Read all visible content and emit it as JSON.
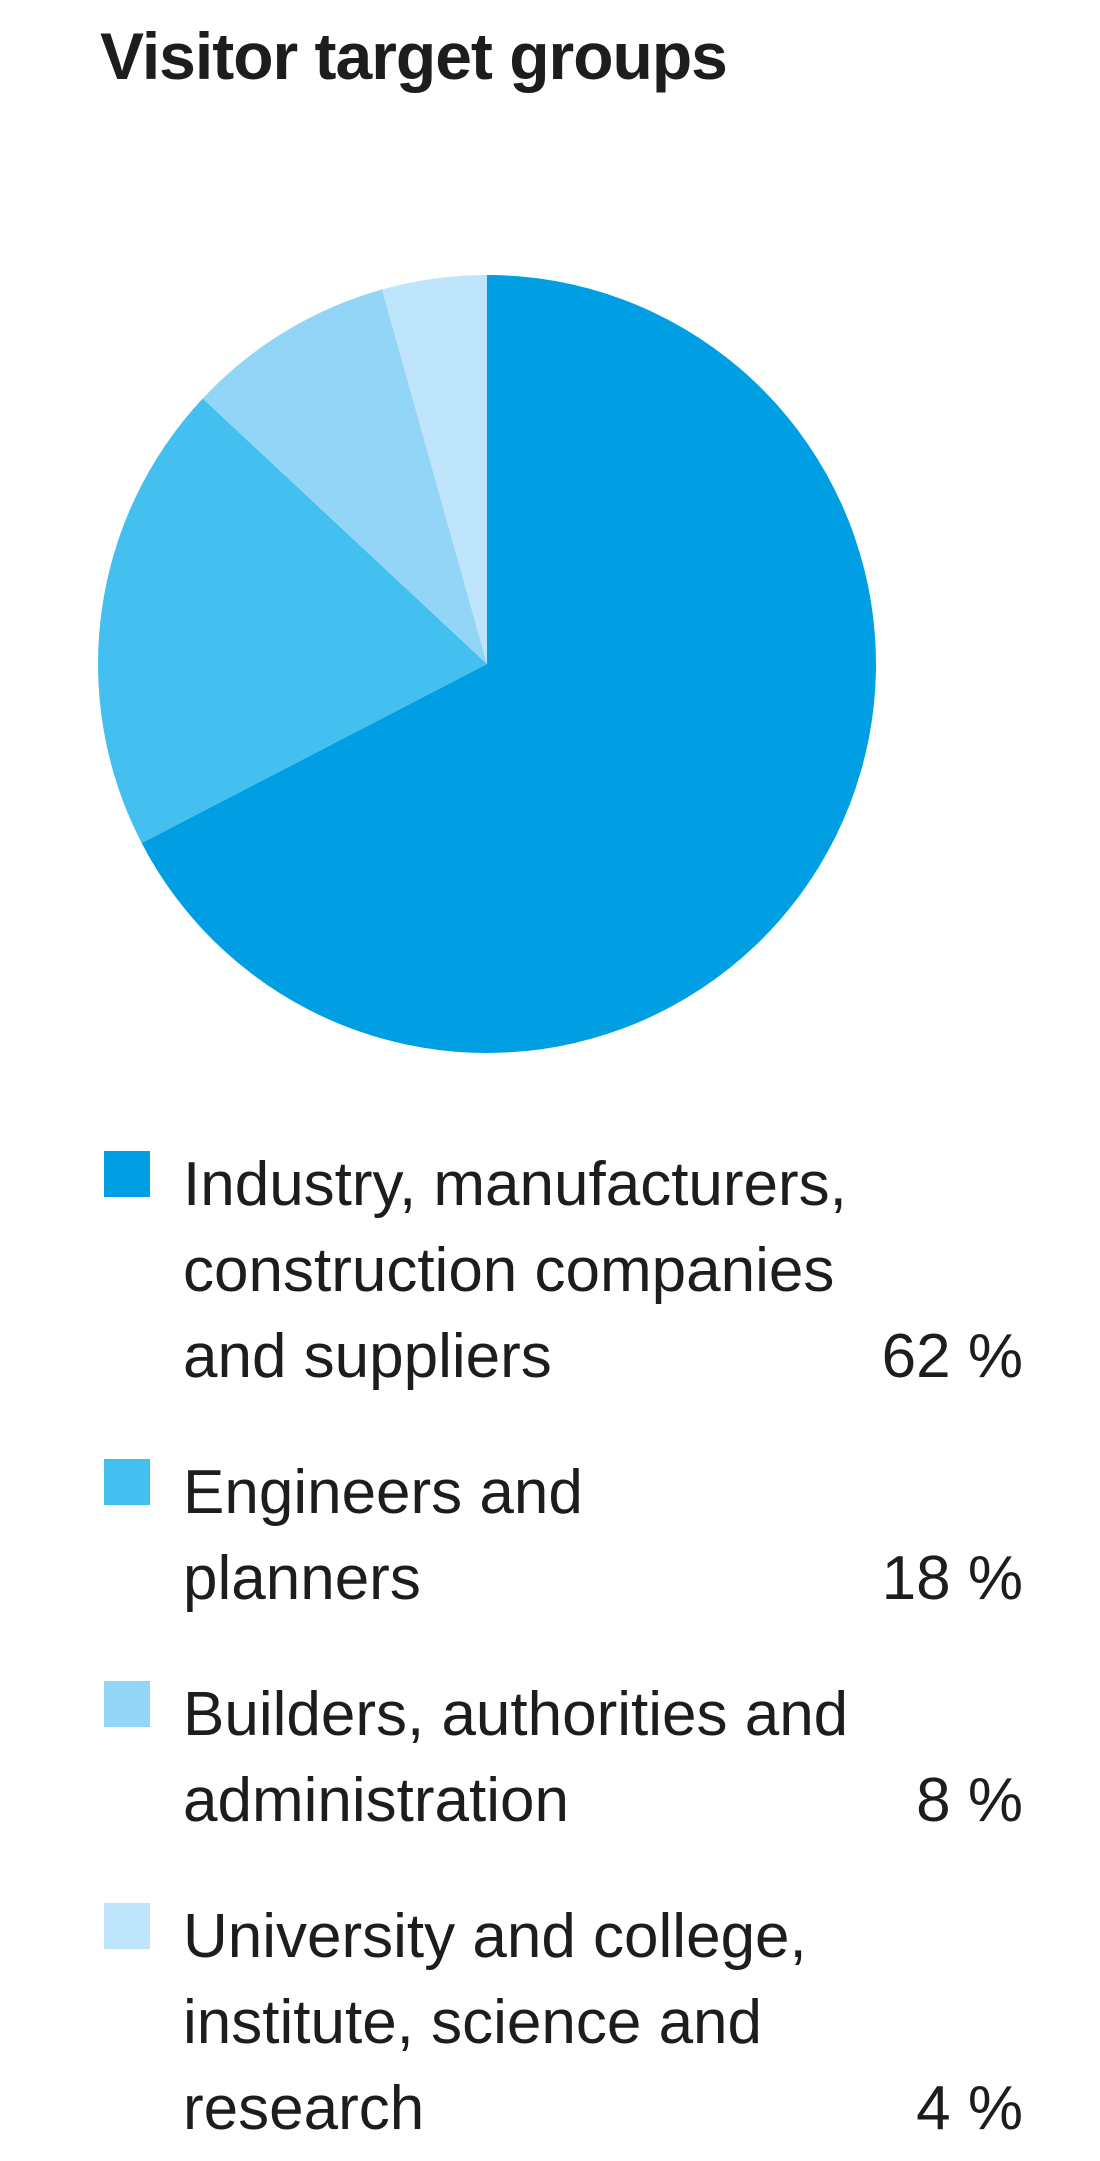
{
  "title": "Visitor target groups",
  "chart_data": {
    "type": "pie",
    "title": "Visitor target groups",
    "categories": [
      "Industry, manufacturers, construction companies and suppliers",
      "Engineers and planners",
      "Builders, authorities and administration",
      "University and college, institute, science and research"
    ],
    "values": [
      62,
      18,
      8,
      4
    ],
    "unit": "%",
    "colors": [
      "#009FE3",
      "#44C0F0",
      "#93D5F7",
      "#BEE5FB"
    ],
    "start_angle_deg": 0,
    "direction": "clockwise",
    "legend_position": "bottom",
    "note": "slice angles proportional to values (values sum to 92)"
  },
  "legend": {
    "items": [
      {
        "lines": [
          "Industry, manufacturers,",
          "construction companies",
          "and suppliers"
        ],
        "percent": "62 %",
        "color": "#009FE3"
      },
      {
        "lines": [
          "Engineers and",
          "planners"
        ],
        "percent": "18 %",
        "color": "#44C0F0"
      },
      {
        "lines": [
          "Builders, authorities and",
          "administration"
        ],
        "percent": "8 %",
        "color": "#93D5F7"
      },
      {
        "lines": [
          "University and college,",
          "institute, science and",
          "research"
        ],
        "percent": "4 %",
        "color": "#BEE5FB"
      }
    ]
  },
  "text_color": "#1d1d1b"
}
